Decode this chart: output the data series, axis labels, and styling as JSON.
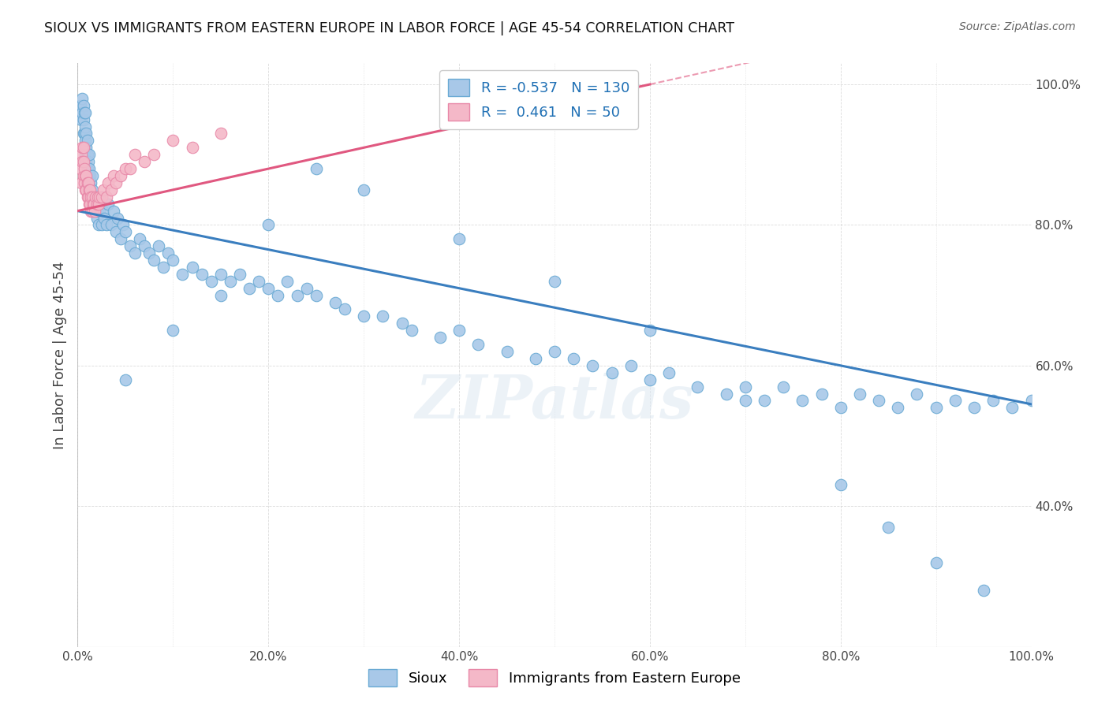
{
  "title": "SIOUX VS IMMIGRANTS FROM EASTERN EUROPE IN LABOR FORCE | AGE 45-54 CORRELATION CHART",
  "source": "Source: ZipAtlas.com",
  "ylabel": "In Labor Force | Age 45-54",
  "watermark": "ZIPatlas",
  "blue_R": -0.537,
  "blue_N": 130,
  "pink_R": 0.461,
  "pink_N": 50,
  "blue_color": "#a8c8e8",
  "blue_edge_color": "#6aaad4",
  "blue_line_color": "#3a7ebf",
  "pink_color": "#f4b8c8",
  "pink_edge_color": "#e888a8",
  "pink_line_color": "#e05880",
  "background": "#ffffff",
  "grid_color": "#cccccc",
  "legend_label_blue": "Sioux",
  "legend_label_pink": "Immigrants from Eastern Europe",
  "blue_scatter_x": [
    0.003,
    0.004,
    0.005,
    0.005,
    0.006,
    0.006,
    0.006,
    0.007,
    0.007,
    0.007,
    0.008,
    0.008,
    0.008,
    0.008,
    0.009,
    0.009,
    0.009,
    0.01,
    0.01,
    0.01,
    0.011,
    0.011,
    0.012,
    0.012,
    0.012,
    0.013,
    0.013,
    0.014,
    0.014,
    0.015,
    0.015,
    0.015,
    0.016,
    0.016,
    0.017,
    0.018,
    0.018,
    0.019,
    0.02,
    0.021,
    0.022,
    0.023,
    0.025,
    0.025,
    0.027,
    0.028,
    0.03,
    0.032,
    0.035,
    0.038,
    0.04,
    0.042,
    0.045,
    0.048,
    0.05,
    0.055,
    0.06,
    0.065,
    0.07,
    0.075,
    0.08,
    0.085,
    0.09,
    0.095,
    0.1,
    0.11,
    0.12,
    0.13,
    0.14,
    0.15,
    0.16,
    0.17,
    0.18,
    0.19,
    0.2,
    0.21,
    0.22,
    0.23,
    0.24,
    0.25,
    0.27,
    0.28,
    0.3,
    0.32,
    0.34,
    0.35,
    0.38,
    0.4,
    0.42,
    0.45,
    0.48,
    0.5,
    0.52,
    0.54,
    0.56,
    0.58,
    0.6,
    0.62,
    0.65,
    0.68,
    0.7,
    0.72,
    0.74,
    0.76,
    0.78,
    0.8,
    0.82,
    0.84,
    0.86,
    0.88,
    0.9,
    0.92,
    0.94,
    0.96,
    0.98,
    1.0,
    0.05,
    0.1,
    0.15,
    0.2,
    0.25,
    0.3,
    0.4,
    0.5,
    0.6,
    0.7,
    0.8,
    0.85,
    0.9,
    0.95
  ],
  "blue_scatter_y": [
    0.97,
    0.95,
    0.96,
    0.98,
    0.93,
    0.95,
    0.97,
    0.91,
    0.93,
    0.96,
    0.9,
    0.92,
    0.94,
    0.96,
    0.89,
    0.91,
    0.93,
    0.88,
    0.9,
    0.92,
    0.87,
    0.89,
    0.86,
    0.88,
    0.9,
    0.85,
    0.87,
    0.84,
    0.86,
    0.83,
    0.85,
    0.87,
    0.82,
    0.84,
    0.83,
    0.82,
    0.84,
    0.83,
    0.81,
    0.82,
    0.8,
    0.82,
    0.8,
    0.84,
    0.82,
    0.81,
    0.8,
    0.83,
    0.8,
    0.82,
    0.79,
    0.81,
    0.78,
    0.8,
    0.79,
    0.77,
    0.76,
    0.78,
    0.77,
    0.76,
    0.75,
    0.77,
    0.74,
    0.76,
    0.75,
    0.73,
    0.74,
    0.73,
    0.72,
    0.73,
    0.72,
    0.73,
    0.71,
    0.72,
    0.71,
    0.7,
    0.72,
    0.7,
    0.71,
    0.7,
    0.69,
    0.68,
    0.67,
    0.67,
    0.66,
    0.65,
    0.64,
    0.65,
    0.63,
    0.62,
    0.61,
    0.62,
    0.61,
    0.6,
    0.59,
    0.6,
    0.58,
    0.59,
    0.57,
    0.56,
    0.57,
    0.55,
    0.57,
    0.55,
    0.56,
    0.54,
    0.56,
    0.55,
    0.54,
    0.56,
    0.54,
    0.55,
    0.54,
    0.55,
    0.54,
    0.55,
    0.58,
    0.65,
    0.7,
    0.8,
    0.88,
    0.85,
    0.78,
    0.72,
    0.65,
    0.55,
    0.43,
    0.37,
    0.32,
    0.28
  ],
  "pink_scatter_x": [
    0.003,
    0.004,
    0.004,
    0.005,
    0.005,
    0.006,
    0.006,
    0.006,
    0.007,
    0.007,
    0.008,
    0.008,
    0.009,
    0.009,
    0.01,
    0.01,
    0.011,
    0.011,
    0.012,
    0.012,
    0.013,
    0.013,
    0.014,
    0.014,
    0.015,
    0.015,
    0.016,
    0.017,
    0.018,
    0.019,
    0.02,
    0.021,
    0.022,
    0.023,
    0.025,
    0.027,
    0.03,
    0.032,
    0.035,
    0.038,
    0.04,
    0.045,
    0.05,
    0.055,
    0.06,
    0.07,
    0.08,
    0.1,
    0.12,
    0.15
  ],
  "pink_scatter_y": [
    0.88,
    0.9,
    0.86,
    0.89,
    0.91,
    0.87,
    0.89,
    0.91,
    0.86,
    0.88,
    0.85,
    0.87,
    0.85,
    0.87,
    0.84,
    0.86,
    0.84,
    0.86,
    0.83,
    0.85,
    0.83,
    0.85,
    0.82,
    0.84,
    0.82,
    0.84,
    0.83,
    0.83,
    0.82,
    0.84,
    0.83,
    0.84,
    0.83,
    0.84,
    0.84,
    0.85,
    0.84,
    0.86,
    0.85,
    0.87,
    0.86,
    0.87,
    0.88,
    0.88,
    0.9,
    0.89,
    0.9,
    0.92,
    0.91,
    0.93
  ],
  "xlim": [
    0.0,
    1.0
  ],
  "ylim": [
    0.2,
    1.03
  ],
  "xtick_labels": [
    "0.0%",
    "",
    "20.0%",
    "",
    "40.0%",
    "",
    "60.0%",
    "",
    "80.0%",
    "",
    "100.0%"
  ],
  "xtick_values": [
    0.0,
    0.1,
    0.2,
    0.3,
    0.4,
    0.5,
    0.6,
    0.7,
    0.8,
    0.9,
    1.0
  ],
  "ytick_labels": [
    "40.0%",
    "60.0%",
    "80.0%",
    "100.0%"
  ],
  "ytick_values": [
    0.4,
    0.6,
    0.8,
    1.0
  ],
  "blue_line_x0": 0.0,
  "blue_line_x1": 1.0,
  "blue_line_y0": 0.82,
  "blue_line_y1": 0.545,
  "pink_line_x0": 0.0,
  "pink_line_x1": 0.6,
  "pink_line_y0": 0.82,
  "pink_line_y1": 1.0
}
